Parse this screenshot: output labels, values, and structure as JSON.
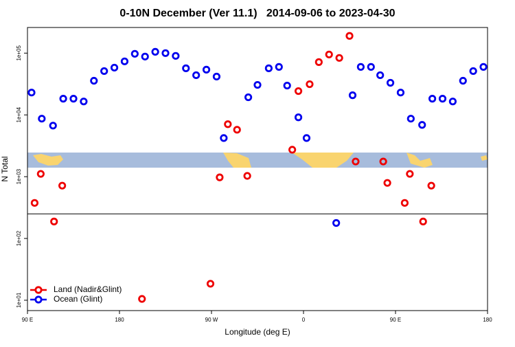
{
  "chart_data": {
    "type": "scatter",
    "title": "0-10N December (Ver 11.1)   2014-09-06 to 2023-04-30",
    "x_label": "Longitude (deg E)",
    "y_label": "N Total",
    "log_y": true,
    "legend": "bottomleft",
    "hline": 250,
    "xlim": [
      90,
      540
    ],
    "xticks": [
      {
        "value": 90,
        "label": "90 E"
      },
      180,
      {
        "value": 270,
        "label": "90 W"
      },
      {
        "value": 360,
        "label": "0"
      },
      {
        "value": 450,
        "label": "90 E"
      },
      {
        "value": 540,
        "label": "180"
      }
    ],
    "ylim": [
      6.8,
      260000
    ],
    "yticks": [
      {
        "value": 10,
        "label": "1e+01"
      },
      {
        "value": 100,
        "label": "1e+02"
      },
      {
        "value": 1000,
        "label": "1e+03"
      },
      {
        "value": 10000,
        "label": "1e+04"
      },
      {
        "value": 100000,
        "label": "1e+05"
      }
    ],
    "series": [
      {
        "name": "Land (Nadir&Glint)",
        "color": "#ee0000",
        "x": [
          97,
          103,
          116,
          124,
          202,
          269,
          278,
          286,
          295,
          305,
          349,
          355,
          366,
          375,
          385,
          395,
          405,
          411,
          438,
          442,
          459,
          464,
          477,
          485
        ],
        "values": [
          376,
          1110,
          188,
          716,
          10.5,
          18.5,
          975,
          7070,
          5750,
          1030,
          2730,
          24300,
          31400,
          71600,
          95000,
          83600,
          190000,
          1760,
          1760,
          793,
          376,
          1110,
          188,
          716
        ]
      },
      {
        "name": "Ocean (Glint)",
        "color": "#0000ee",
        "x": [
          94,
          104,
          115,
          125,
          135,
          145,
          155,
          165,
          175,
          185,
          195,
          205,
          215,
          225,
          235,
          245,
          255,
          265,
          275,
          282,
          306,
          315,
          326,
          336,
          344,
          355,
          363,
          392,
          408,
          416,
          426,
          435,
          445,
          455,
          465,
          476,
          486,
          496,
          506,
          516,
          526,
          536
        ],
        "values": [
          23000,
          8690,
          6710,
          18300,
          18300,
          16500,
          35700,
          51200,
          58200,
          73500,
          97500,
          87900,
          105000,
          100000,
          90200,
          56800,
          43900,
          54000,
          41700,
          4220,
          19300,
          30600,
          56800,
          59800,
          29800,
          9140,
          4220,
          178,
          20800,
          59800,
          59800,
          43900,
          33100,
          23000,
          8690,
          6890,
          18300,
          18300,
          16500,
          35700,
          51200,
          59800
        ]
      }
    ]
  }
}
